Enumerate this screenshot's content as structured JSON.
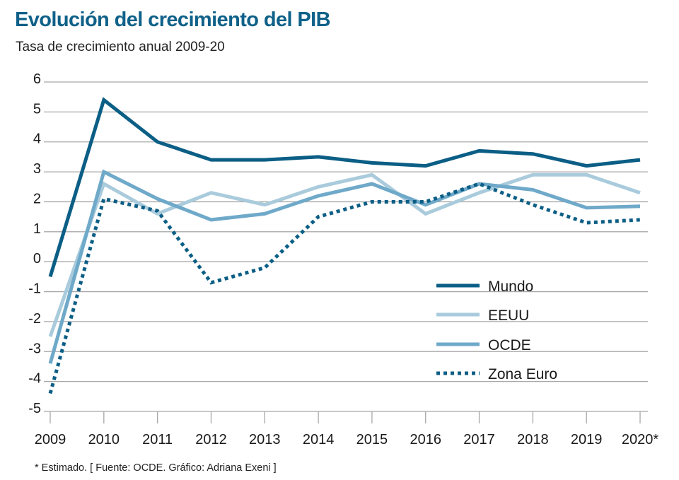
{
  "chart_data": {
    "type": "line",
    "title": "Evolución del crecimiento del PIB",
    "subtitle": "Tasa de crecimiento anual 2009-20",
    "xlabel": "",
    "ylabel": "",
    "x": [
      "2009",
      "2010",
      "2011",
      "2012",
      "2013",
      "2014",
      "2015",
      "2016",
      "2017",
      "2018",
      "2019",
      "2020*"
    ],
    "yticks": [
      6,
      5,
      4,
      3,
      2,
      1,
      0,
      -1,
      -2,
      -3,
      -4,
      -5
    ],
    "ylim": [
      -5,
      6
    ],
    "grid": true,
    "legend_position": "bottom-right",
    "series": [
      {
        "name": "Mundo",
        "color": "#0b5e85",
        "style": "solid",
        "values": [
          -0.5,
          5.4,
          4.0,
          3.4,
          3.4,
          3.5,
          3.3,
          3.2,
          3.7,
          3.6,
          3.2,
          3.4
        ]
      },
      {
        "name": "EEUU",
        "color": "#a9cbdc",
        "style": "solid",
        "values": [
          -2.5,
          2.6,
          1.6,
          2.3,
          1.9,
          2.5,
          2.9,
          1.6,
          2.3,
          2.9,
          2.9,
          2.3
        ]
      },
      {
        "name": "OCDE",
        "color": "#6fa9c9",
        "style": "solid",
        "values": [
          -3.4,
          3.0,
          2.1,
          1.4,
          1.6,
          2.2,
          2.6,
          1.9,
          2.6,
          2.4,
          1.8,
          1.85
        ]
      },
      {
        "name": "Zona Euro",
        "color": "#0b5e85",
        "style": "dotted",
        "values": [
          -4.4,
          2.1,
          1.7,
          -0.7,
          -0.2,
          1.5,
          2.0,
          2.0,
          2.6,
          1.9,
          1.3,
          1.4
        ]
      }
    ],
    "footnote": "* Estimado. [ Fuente: OCDE. Gráfico: Adriana Exeni ]"
  }
}
